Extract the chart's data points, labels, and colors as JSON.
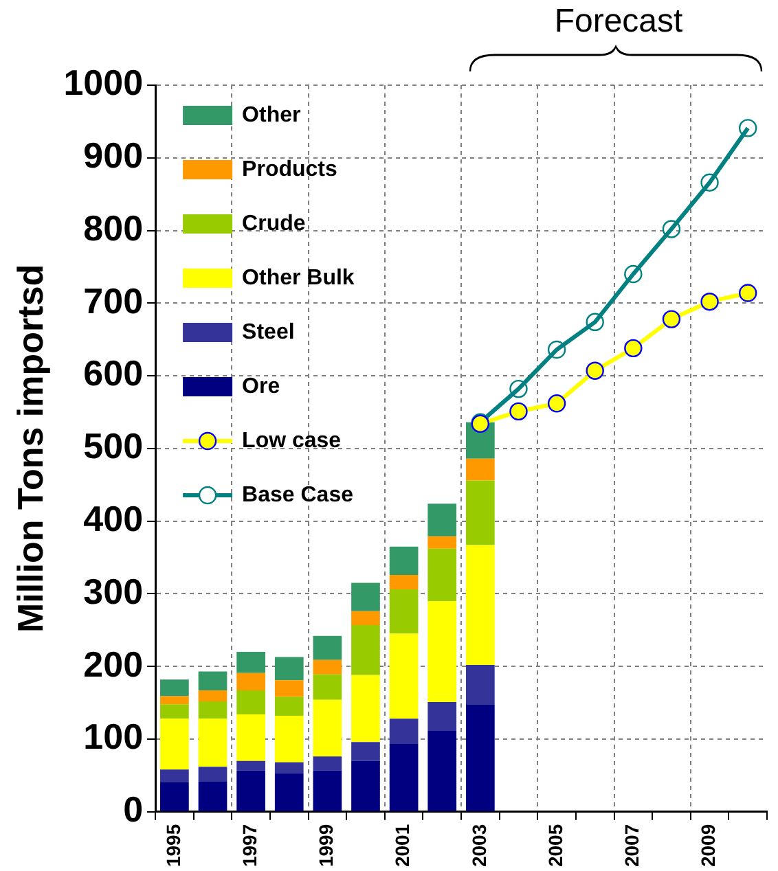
{
  "chart_data": {
    "type": "bar",
    "stacked": true,
    "ylabel": "Million Tons importsd",
    "annotations": [
      "Forecast"
    ],
    "categories": [
      "1995",
      null,
      "1997",
      null,
      "1999",
      null,
      "2001",
      null,
      "2003",
      null,
      "2005",
      null,
      "2007",
      null,
      "2009",
      null
    ],
    "ylim": [
      0,
      1000
    ],
    "yticks": [
      0,
      100,
      200,
      300,
      400,
      500,
      600,
      700,
      800,
      900,
      1000
    ],
    "grid": true,
    "legend": "top left",
    "marker": "circle",
    "series": [
      {
        "name": "Ore",
        "color": "#000080",
        "values": [
          41,
          42,
          57,
          53,
          57,
          70,
          94,
          112,
          148,
          null,
          null,
          null,
          null,
          null,
          null,
          null
        ]
      },
      {
        "name": "Steel",
        "color": "#333399",
        "values": [
          17,
          20,
          13,
          15,
          19,
          26,
          34,
          39,
          54,
          null,
          null,
          null,
          null,
          null,
          null,
          null
        ]
      },
      {
        "name": "Other Bulk",
        "color": "#ffff00",
        "values": [
          70,
          66,
          64,
          64,
          78,
          92,
          117,
          139,
          165,
          null,
          null,
          null,
          null,
          null,
          null,
          null
        ]
      },
      {
        "name": "Crude",
        "color": "#99cc00",
        "values": [
          20,
          24,
          33,
          26,
          35,
          69,
          61,
          72,
          89,
          null,
          null,
          null,
          null,
          null,
          null,
          null
        ]
      },
      {
        "name": "Products",
        "color": "#ff9900",
        "values": [
          11,
          15,
          24,
          23,
          20,
          19,
          20,
          17,
          30,
          null,
          null,
          null,
          null,
          null,
          null,
          null
        ]
      },
      {
        "name": "Other",
        "color": "#339966",
        "values": [
          23,
          26,
          29,
          32,
          33,
          39,
          39,
          45,
          50,
          null,
          null,
          null,
          null,
          null,
          null,
          null
        ]
      },
      {
        "name": "Low case",
        "type": "line",
        "color": "#ffff00",
        "values": [
          null,
          null,
          null,
          null,
          null,
          null,
          null,
          null,
          534,
          551,
          562,
          607,
          638,
          678,
          702,
          714
        ]
      },
      {
        "name": "Base Case",
        "type": "line",
        "color": "#008080",
        "values": [
          null,
          null,
          null,
          null,
          null,
          null,
          null,
          null,
          536,
          582,
          636,
          674,
          740,
          802,
          866,
          941
        ]
      }
    ]
  }
}
